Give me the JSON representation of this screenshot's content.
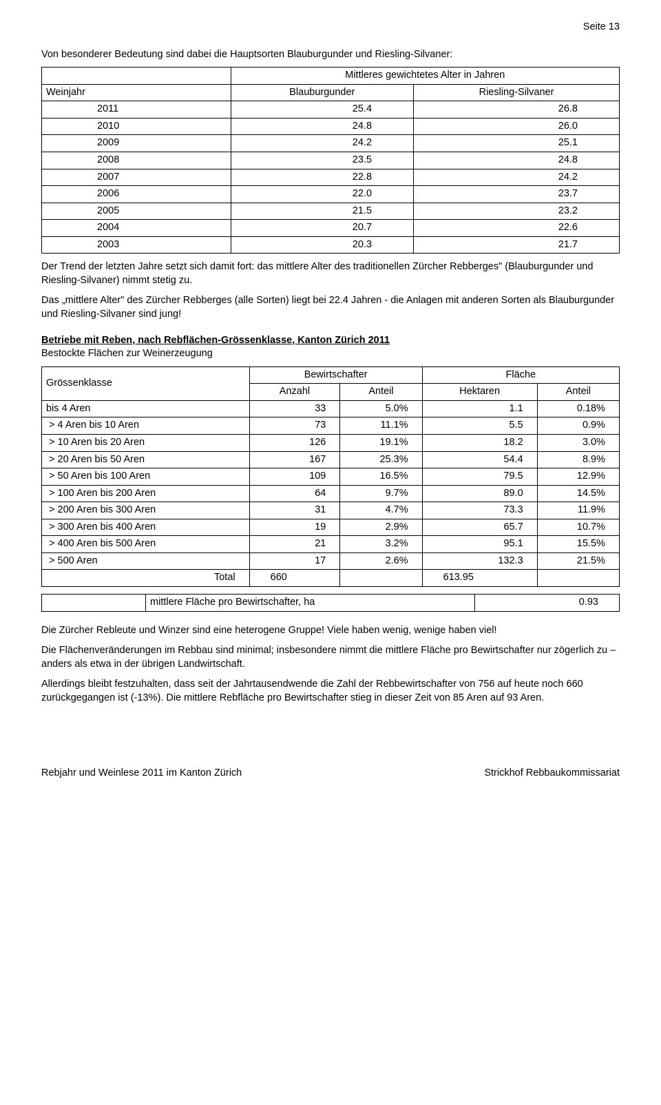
{
  "page_label": "Seite 13",
  "intro_text": "Von besonderer Bedeutung sind dabei die Hauptsorten Blauburgunder und Riesling-Silvaner:",
  "alter_table": {
    "header_span": "Mittleres gewichtetes Alter in Jahren",
    "col1": "Weinjahr",
    "col2": "Blauburgunder",
    "col3": "Riesling-Silvaner",
    "rows": [
      {
        "year": "2011",
        "bb": "25.4",
        "rs": "26.8"
      },
      {
        "year": "2010",
        "bb": "24.8",
        "rs": "26.0"
      },
      {
        "year": "2009",
        "bb": "24.2",
        "rs": "25.1"
      },
      {
        "year": "2008",
        "bb": "23.5",
        "rs": "24.8"
      },
      {
        "year": "2007",
        "bb": "22.8",
        "rs": "24.2"
      },
      {
        "year": "2006",
        "bb": "22.0",
        "rs": "23.7"
      },
      {
        "year": "2005",
        "bb": "21.5",
        "rs": "23.2"
      },
      {
        "year": "2004",
        "bb": "20.7",
        "rs": "22.6"
      },
      {
        "year": "2003",
        "bb": "20.3",
        "rs": "21.7"
      }
    ]
  },
  "para1": "Der Trend der letzten Jahre setzt sich damit fort: das mittlere Alter des traditionellen Zürcher Rebberges\" (Blauburgunder und Riesling-Silvaner) nimmt stetig zu.",
  "para2": "Das „mittlere Alter\" des Zürcher Rebberges (alle Sorten) liegt bei 22.4 Jahren - die Anlagen mit anderen Sorten als Blauburgunder und Riesling-Silvaner sind jung!",
  "section_title": "Betriebe mit Reben, nach Rebflächen-Grössenklasse, Kanton Zürich 2011",
  "section_sub": "Bestockte Flächen zur Weinerzeugung",
  "klasse_table": {
    "h_klasse": "Grössenklasse",
    "h_bewirt": "Bewirtschafter",
    "h_flaeche": "Fläche",
    "h_anzahl": "Anzahl",
    "h_anteil": "Anteil",
    "h_hektaren": "Hektaren",
    "rows": [
      {
        "label": "bis 4 Aren",
        "anzahl": "33",
        "anteil1": "5.0%",
        "hekt": "1.1",
        "anteil2": "0.18%"
      },
      {
        "label": "> 4  Aren bis 10 Aren",
        "anzahl": "73",
        "anteil1": "11.1%",
        "hekt": "5.5",
        "anteil2": "0.9%"
      },
      {
        "label": "> 10 Aren bis 20 Aren",
        "anzahl": "126",
        "anteil1": "19.1%",
        "hekt": "18.2",
        "anteil2": "3.0%"
      },
      {
        "label": "> 20 Aren bis 50 Aren",
        "anzahl": "167",
        "anteil1": "25.3%",
        "hekt": "54.4",
        "anteil2": "8.9%"
      },
      {
        "label": "> 50 Aren bis 100 Aren",
        "anzahl": "109",
        "anteil1": "16.5%",
        "hekt": "79.5",
        "anteil2": "12.9%"
      },
      {
        "label": "> 100 Aren bis 200 Aren",
        "anzahl": "64",
        "anteil1": "9.7%",
        "hekt": "89.0",
        "anteil2": "14.5%"
      },
      {
        "label": "> 200 Aren bis 300 Aren",
        "anzahl": "31",
        "anteil1": "4.7%",
        "hekt": "73.3",
        "anteil2": "11.9%"
      },
      {
        "label": "> 300 Aren bis 400 Aren",
        "anzahl": "19",
        "anteil1": "2.9%",
        "hekt": "65.7",
        "anteil2": "10.7%"
      },
      {
        "label": "> 400 Aren bis 500 Aren",
        "anzahl": "21",
        "anteil1": "3.2%",
        "hekt": "95.1",
        "anteil2": "15.5%"
      },
      {
        "label": "> 500 Aren",
        "anzahl": "17",
        "anteil1": "2.6%",
        "hekt": "132.3",
        "anteil2": "21.5%"
      }
    ],
    "total_label": "Total",
    "total_anzahl": "660",
    "total_hekt": "613.95"
  },
  "mid_table": {
    "label": "mittlere Fläche pro Bewirtschafter, ha",
    "value": "0.93"
  },
  "para3": "Die Zürcher Rebleute und Winzer sind eine heterogene Gruppe! Viele haben wenig, wenige haben viel!",
  "para4": "Die Flächenveränderungen im Rebbau sind minimal; insbesondere nimmt die mittlere Fläche pro Bewirtschafter nur zögerlich zu – anders als etwa in der übrigen Landwirtschaft.",
  "para5": "Allerdings bleibt festzuhalten, dass seit der Jahrtausendwende die Zahl der Rebbewirtschafter von 756 auf heute noch 660 zurückgegangen ist (-13%). Die mittlere Rebfläche pro Bewirtschafter stieg in dieser Zeit von 85 Aren auf 93 Aren.",
  "footer_left": "Rebjahr und Weinlese 2011 im Kanton Zürich",
  "footer_right": "Strickhof Rebbaukommissariat"
}
